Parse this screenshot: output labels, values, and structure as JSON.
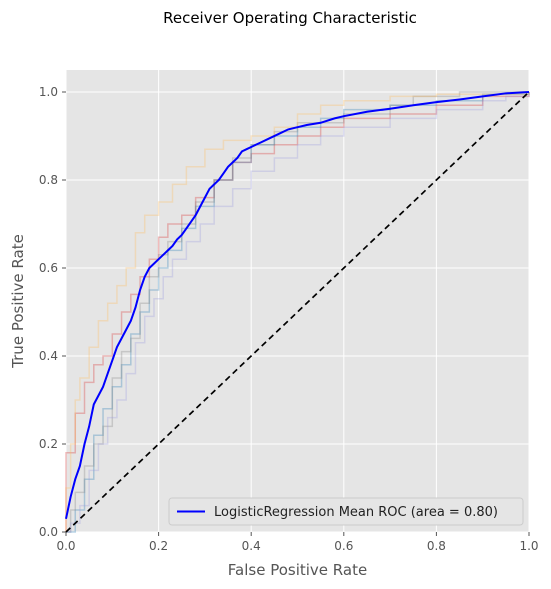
{
  "chart_data": {
    "type": "line",
    "title": "Receiver Operating Characteristic",
    "xlabel": "False Positive Rate",
    "ylabel": "True Positive Rate",
    "xlim": [
      0,
      1
    ],
    "ylim": [
      0,
      1.05
    ],
    "x_ticks": [
      "0.0",
      "0.2",
      "0.4",
      "0.6",
      "0.8",
      "1.0"
    ],
    "y_ticks": [
      "0.0",
      "0.2",
      "0.4",
      "0.6",
      "0.8",
      "1.0"
    ],
    "grid": true,
    "legend_position": "bottom-right",
    "mean_series": {
      "name": "LogisticRegression Mean ROC (area = 0.80)",
      "color": "#0000ff",
      "points": [
        [
          0,
          0.03
        ],
        [
          0.01,
          0.08
        ],
        [
          0.02,
          0.12
        ],
        [
          0.03,
          0.15
        ],
        [
          0.04,
          0.2
        ],
        [
          0.05,
          0.24
        ],
        [
          0.06,
          0.29
        ],
        [
          0.07,
          0.31
        ],
        [
          0.08,
          0.33
        ],
        [
          0.09,
          0.36
        ],
        [
          0.1,
          0.39
        ],
        [
          0.11,
          0.42
        ],
        [
          0.12,
          0.44
        ],
        [
          0.13,
          0.46
        ],
        [
          0.14,
          0.48
        ],
        [
          0.15,
          0.51
        ],
        [
          0.16,
          0.55
        ],
        [
          0.17,
          0.58
        ],
        [
          0.18,
          0.6
        ],
        [
          0.19,
          0.61
        ],
        [
          0.2,
          0.62
        ],
        [
          0.21,
          0.63
        ],
        [
          0.22,
          0.64
        ],
        [
          0.23,
          0.65
        ],
        [
          0.24,
          0.665
        ],
        [
          0.25,
          0.675
        ],
        [
          0.26,
          0.69
        ],
        [
          0.27,
          0.705
        ],
        [
          0.28,
          0.72
        ],
        [
          0.29,
          0.74
        ],
        [
          0.3,
          0.76
        ],
        [
          0.31,
          0.78
        ],
        [
          0.32,
          0.79
        ],
        [
          0.33,
          0.8
        ],
        [
          0.34,
          0.815
        ],
        [
          0.35,
          0.83
        ],
        [
          0.36,
          0.84
        ],
        [
          0.37,
          0.85
        ],
        [
          0.38,
          0.865
        ],
        [
          0.39,
          0.87
        ],
        [
          0.4,
          0.875
        ],
        [
          0.42,
          0.885
        ],
        [
          0.44,
          0.895
        ],
        [
          0.46,
          0.905
        ],
        [
          0.48,
          0.915
        ],
        [
          0.5,
          0.92
        ],
        [
          0.52,
          0.925
        ],
        [
          0.55,
          0.93
        ],
        [
          0.58,
          0.94
        ],
        [
          0.6,
          0.945
        ],
        [
          0.65,
          0.955
        ],
        [
          0.7,
          0.962
        ],
        [
          0.75,
          0.97
        ],
        [
          0.8,
          0.977
        ],
        [
          0.85,
          0.983
        ],
        [
          0.9,
          0.99
        ],
        [
          0.95,
          0.997
        ],
        [
          1,
          1
        ]
      ]
    },
    "fold_series": [
      {
        "color": "#d62728",
        "points": [
          [
            0,
            0
          ],
          [
            0,
            0.18
          ],
          [
            0.02,
            0.27
          ],
          [
            0.04,
            0.34
          ],
          [
            0.06,
            0.38
          ],
          [
            0.08,
            0.4
          ],
          [
            0.1,
            0.45
          ],
          [
            0.12,
            0.5
          ],
          [
            0.14,
            0.54
          ],
          [
            0.16,
            0.58
          ],
          [
            0.18,
            0.62
          ],
          [
            0.2,
            0.67
          ],
          [
            0.22,
            0.7
          ],
          [
            0.25,
            0.72
          ],
          [
            0.28,
            0.76
          ],
          [
            0.32,
            0.8
          ],
          [
            0.36,
            0.84
          ],
          [
            0.4,
            0.86
          ],
          [
            0.45,
            0.88
          ],
          [
            0.5,
            0.9
          ],
          [
            0.55,
            0.92
          ],
          [
            0.6,
            0.94
          ],
          [
            0.7,
            0.95
          ],
          [
            0.8,
            0.97
          ],
          [
            0.9,
            0.99
          ],
          [
            1,
            1
          ]
        ]
      },
      {
        "color": "#1f77b4",
        "points": [
          [
            0,
            0
          ],
          [
            0.02,
            0.05
          ],
          [
            0.04,
            0.12
          ],
          [
            0.06,
            0.22
          ],
          [
            0.08,
            0.28
          ],
          [
            0.1,
            0.33
          ],
          [
            0.12,
            0.38
          ],
          [
            0.14,
            0.45
          ],
          [
            0.16,
            0.5
          ],
          [
            0.18,
            0.55
          ],
          [
            0.2,
            0.6
          ],
          [
            0.22,
            0.64
          ],
          [
            0.25,
            0.69
          ],
          [
            0.28,
            0.74
          ],
          [
            0.32,
            0.8
          ],
          [
            0.36,
            0.84
          ],
          [
            0.4,
            0.88
          ],
          [
            0.45,
            0.9
          ],
          [
            0.5,
            0.92
          ],
          [
            0.55,
            0.94
          ],
          [
            0.6,
            0.96
          ],
          [
            0.7,
            0.97
          ],
          [
            0.8,
            0.98
          ],
          [
            0.9,
            0.995
          ],
          [
            1,
            1
          ]
        ]
      },
      {
        "color": "#7f7f7f",
        "points": [
          [
            0,
            0
          ],
          [
            0.01,
            0.05
          ],
          [
            0.02,
            0.09
          ],
          [
            0.04,
            0.15
          ],
          [
            0.06,
            0.2
          ],
          [
            0.08,
            0.24
          ],
          [
            0.1,
            0.35
          ],
          [
            0.12,
            0.41
          ],
          [
            0.14,
            0.44
          ],
          [
            0.16,
            0.52
          ],
          [
            0.18,
            0.58
          ],
          [
            0.2,
            0.63
          ],
          [
            0.22,
            0.66
          ],
          [
            0.25,
            0.7
          ],
          [
            0.28,
            0.75
          ],
          [
            0.32,
            0.8
          ],
          [
            0.36,
            0.85
          ],
          [
            0.4,
            0.88
          ],
          [
            0.45,
            0.91
          ],
          [
            0.5,
            0.93
          ],
          [
            0.6,
            0.95
          ],
          [
            0.7,
            0.97
          ],
          [
            0.75,
            0.99
          ],
          [
            0.85,
            1
          ],
          [
            1,
            1
          ]
        ]
      },
      {
        "color": "#ffbb55",
        "points": [
          [
            0,
            0
          ],
          [
            0,
            0.1
          ],
          [
            0.01,
            0.2
          ],
          [
            0.02,
            0.3
          ],
          [
            0.03,
            0.35
          ],
          [
            0.05,
            0.42
          ],
          [
            0.07,
            0.48
          ],
          [
            0.09,
            0.52
          ],
          [
            0.11,
            0.56
          ],
          [
            0.13,
            0.6
          ],
          [
            0.15,
            0.68
          ],
          [
            0.17,
            0.72
          ],
          [
            0.2,
            0.75
          ],
          [
            0.23,
            0.79
          ],
          [
            0.26,
            0.83
          ],
          [
            0.3,
            0.87
          ],
          [
            0.34,
            0.89
          ],
          [
            0.4,
            0.9
          ],
          [
            0.45,
            0.92
          ],
          [
            0.5,
            0.95
          ],
          [
            0.55,
            0.97
          ],
          [
            0.6,
            0.98
          ],
          [
            0.7,
            0.99
          ],
          [
            0.8,
            0.995
          ],
          [
            1,
            1
          ]
        ]
      },
      {
        "color": "#9999dd",
        "points": [
          [
            0,
            0
          ],
          [
            0.01,
            0.02
          ],
          [
            0.03,
            0.06
          ],
          [
            0.05,
            0.14
          ],
          [
            0.07,
            0.2
          ],
          [
            0.09,
            0.26
          ],
          [
            0.11,
            0.3
          ],
          [
            0.13,
            0.36
          ],
          [
            0.15,
            0.43
          ],
          [
            0.17,
            0.49
          ],
          [
            0.19,
            0.53
          ],
          [
            0.21,
            0.58
          ],
          [
            0.23,
            0.62
          ],
          [
            0.26,
            0.66
          ],
          [
            0.29,
            0.7
          ],
          [
            0.32,
            0.74
          ],
          [
            0.36,
            0.78
          ],
          [
            0.4,
            0.82
          ],
          [
            0.45,
            0.85
          ],
          [
            0.5,
            0.88
          ],
          [
            0.55,
            0.9
          ],
          [
            0.6,
            0.92
          ],
          [
            0.7,
            0.94
          ],
          [
            0.8,
            0.96
          ],
          [
            0.9,
            0.98
          ],
          [
            0.95,
            0.99
          ],
          [
            1,
            1
          ]
        ]
      }
    ],
    "diagonal": {
      "points": [
        [
          0,
          0
        ],
        [
          1,
          1
        ]
      ],
      "color": "#000000",
      "style": "dashed"
    }
  }
}
